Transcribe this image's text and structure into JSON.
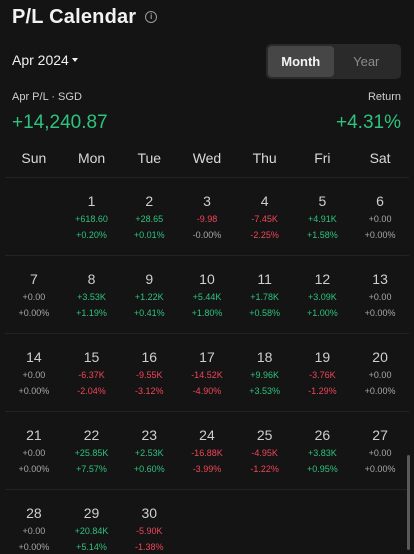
{
  "header": {
    "title": "P/L Calendar",
    "info_icon": "info-icon"
  },
  "period": {
    "selected": "Apr 2024"
  },
  "view_toggle": {
    "options": [
      "Month",
      "Year"
    ],
    "active": "Month"
  },
  "summary": {
    "pl_label": "Apr P/L · SGD",
    "pl_value": "+14,240.87",
    "return_label": "Return",
    "return_value": "+4.31%"
  },
  "weekdays": [
    "Sun",
    "Mon",
    "Tue",
    "Wed",
    "Thu",
    "Fri",
    "Sat"
  ],
  "colors": {
    "positive": "#2ec27e",
    "negative": "#f0455a",
    "neutral": "#a8a8a8",
    "background": "#141414"
  },
  "calendar": {
    "leading_blanks": 1,
    "days": [
      {
        "day": "1",
        "pl": "+618.60",
        "pct": "+0.20%"
      },
      {
        "day": "2",
        "pl": "+28.65",
        "pct": "+0.01%"
      },
      {
        "day": "3",
        "pl": "-9.98",
        "pct": "-0.00%"
      },
      {
        "day": "4",
        "pl": "-7.45K",
        "pct": "-2.25%"
      },
      {
        "day": "5",
        "pl": "+4.91K",
        "pct": "+1.58%"
      },
      {
        "day": "6",
        "pl": "+0.00",
        "pct": "+0.00%"
      },
      {
        "day": "7",
        "pl": "+0.00",
        "pct": "+0.00%"
      },
      {
        "day": "8",
        "pl": "+3.53K",
        "pct": "+1.19%"
      },
      {
        "day": "9",
        "pl": "+1.22K",
        "pct": "+0.41%"
      },
      {
        "day": "10",
        "pl": "+5.44K",
        "pct": "+1.80%"
      },
      {
        "day": "11",
        "pl": "+1.78K",
        "pct": "+0.58%"
      },
      {
        "day": "12",
        "pl": "+3.09K",
        "pct": "+1.00%"
      },
      {
        "day": "13",
        "pl": "+0.00",
        "pct": "+0.00%"
      },
      {
        "day": "14",
        "pl": "+0.00",
        "pct": "+0.00%"
      },
      {
        "day": "15",
        "pl": "-6.37K",
        "pct": "-2.04%"
      },
      {
        "day": "16",
        "pl": "-9.55K",
        "pct": "-3.12%"
      },
      {
        "day": "17",
        "pl": "-14.52K",
        "pct": "-4.90%"
      },
      {
        "day": "18",
        "pl": "+9.96K",
        "pct": "+3.53%"
      },
      {
        "day": "19",
        "pl": "-3.76K",
        "pct": "-1.29%"
      },
      {
        "day": "20",
        "pl": "+0.00",
        "pct": "+0.00%"
      },
      {
        "day": "21",
        "pl": "+0.00",
        "pct": "+0.00%"
      },
      {
        "day": "22",
        "pl": "+25.85K",
        "pct": "+7.57%"
      },
      {
        "day": "23",
        "pl": "+2.53K",
        "pct": "+0.60%"
      },
      {
        "day": "24",
        "pl": "-16.88K",
        "pct": "-3.99%"
      },
      {
        "day": "25",
        "pl": "-4.95K",
        "pct": "-1.22%"
      },
      {
        "day": "26",
        "pl": "+3.83K",
        "pct": "+0.95%"
      },
      {
        "day": "27",
        "pl": "+0.00",
        "pct": "+0.00%"
      },
      {
        "day": "28",
        "pl": "+0.00",
        "pct": "+0.00%"
      },
      {
        "day": "29",
        "pl": "+20.84K",
        "pct": "+5.14%"
      },
      {
        "day": "30",
        "pl": "-5.90K",
        "pct": "-1.38%"
      }
    ]
  }
}
